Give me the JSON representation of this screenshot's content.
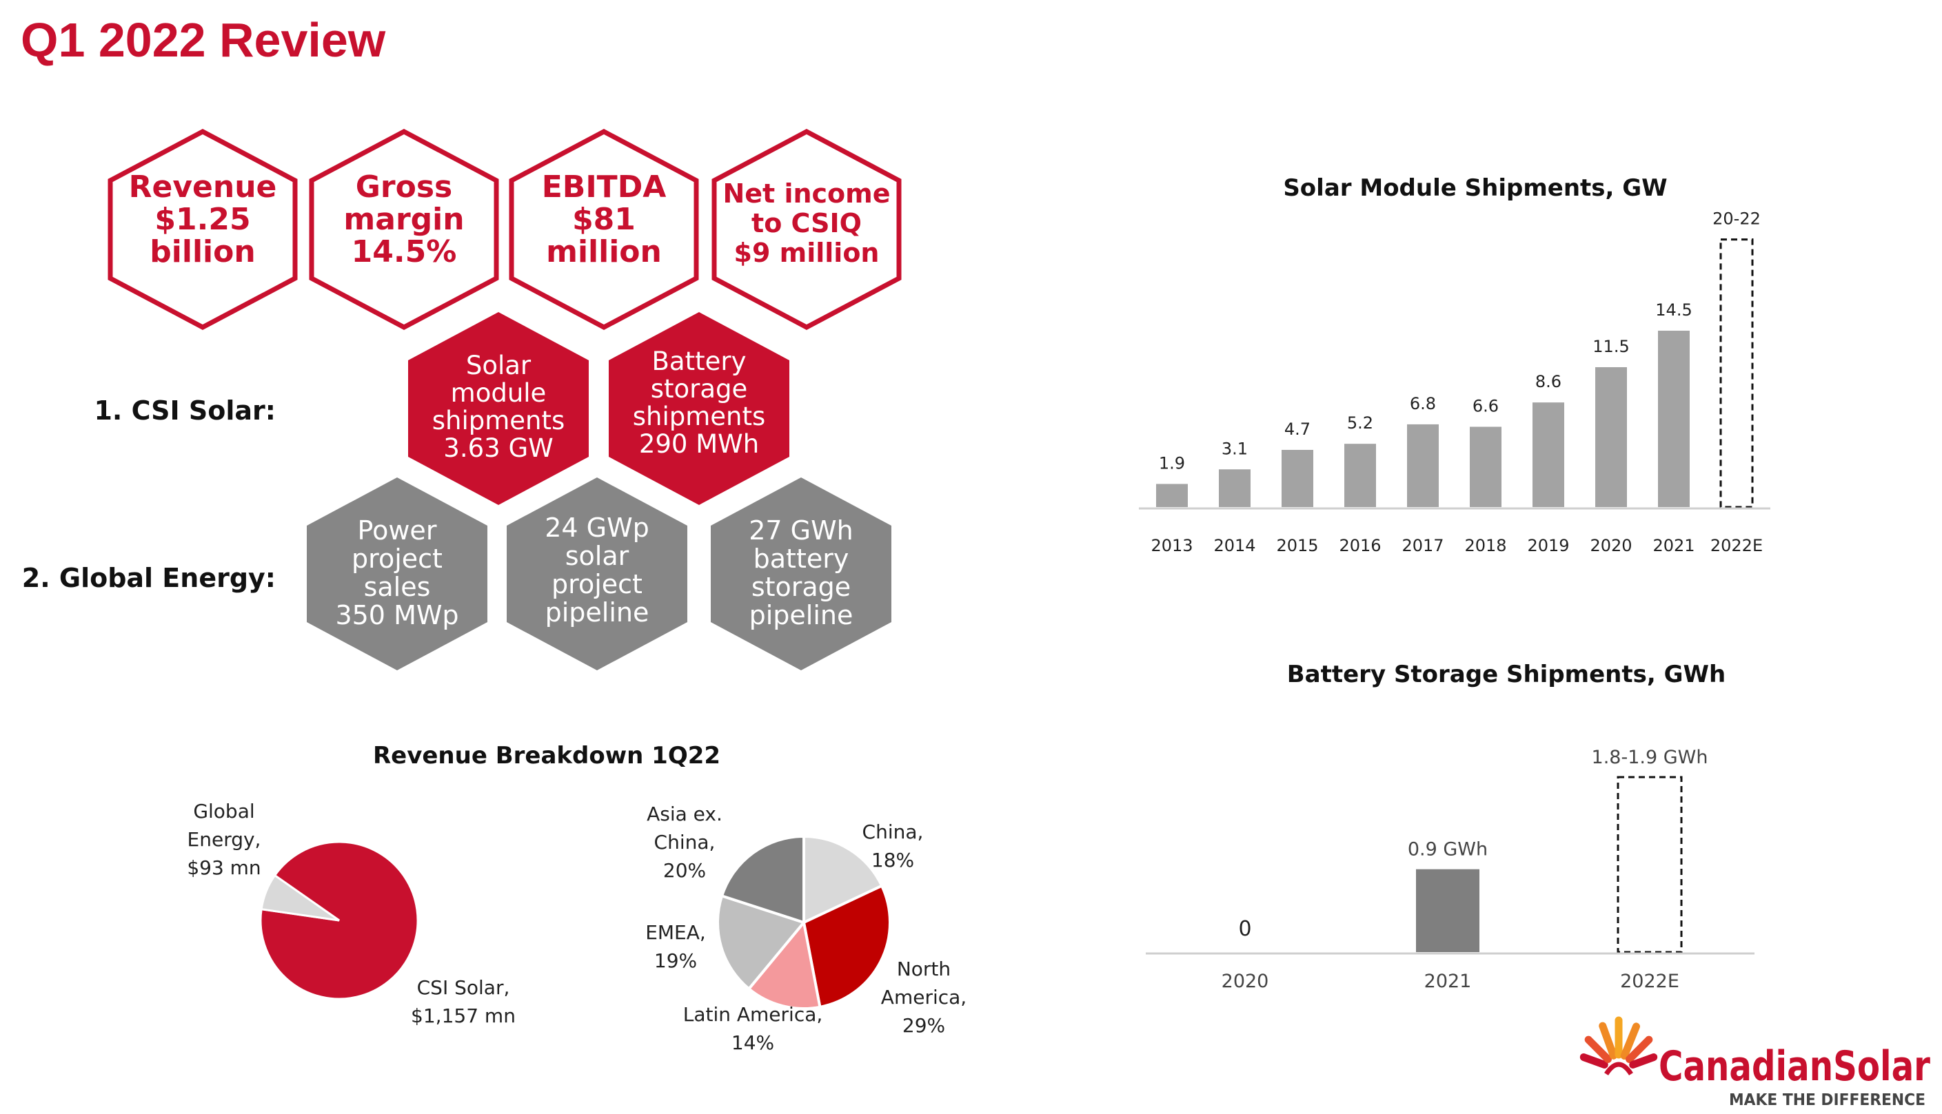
{
  "page": {
    "title": "Q1 2022 Review"
  },
  "kpis": [
    {
      "lines": [
        "Revenue",
        "$1.25",
        "billion"
      ]
    },
    {
      "lines": [
        "Gross",
        "margin",
        "14.5%"
      ]
    },
    {
      "lines": [
        "EBITDA",
        "$81",
        "million"
      ]
    },
    {
      "lines": [
        "Net income",
        "to CSIQ",
        "$9 million"
      ]
    }
  ],
  "segments": {
    "csi_solar": {
      "label": "1. CSI Solar:",
      "items": [
        {
          "lines": [
            "Solar",
            "module",
            "shipments",
            "3.63 GW"
          ]
        },
        {
          "lines": [
            "Battery",
            "storage",
            "shipments",
            "290 MWh"
          ]
        }
      ]
    },
    "global_energy": {
      "label": "2. Global Energy:",
      "items": [
        {
          "lines": [
            "Power",
            "project",
            "sales",
            "350 MWp"
          ]
        },
        {
          "lines": [
            "24 GWp",
            "solar",
            "project",
            "pipeline"
          ]
        },
        {
          "lines": [
            "27 GWh",
            "battery",
            "storage",
            "pipeline"
          ]
        }
      ]
    }
  },
  "colors": {
    "accent_red": "#c8102e",
    "grey_hex": "#868686",
    "bar_grey": "#a3a3a3"
  },
  "logo": {
    "icon": "sun-rays-icon",
    "brand": "CanadianSolar",
    "tagline": "MAKE THE DIFFERENCE"
  },
  "chart_data": [
    {
      "type": "bar",
      "title": "Solar Module Shipments, GW",
      "categories": [
        "2013",
        "2014",
        "2015",
        "2016",
        "2017",
        "2018",
        "2019",
        "2020",
        "2021",
        "2022E"
      ],
      "values": [
        1.9,
        3.1,
        4.7,
        5.2,
        6.8,
        6.6,
        8.6,
        11.5,
        14.5,
        22
      ],
      "value_labels": [
        "1.9",
        "3.1",
        "4.7",
        "5.2",
        "6.8",
        "6.6",
        "8.6",
        "11.5",
        "14.5",
        "20-22"
      ],
      "estimate_range": [
        20,
        22
      ],
      "ylim": [
        0,
        23
      ],
      "grid": false,
      "xlabel": "",
      "ylabel": ""
    },
    {
      "type": "bar",
      "title": "Battery Storage Shipments, GWh",
      "categories": [
        "2020",
        "2021",
        "2022E"
      ],
      "values": [
        0,
        0.9,
        1.9
      ],
      "value_labels": [
        "0",
        "0.9 GWh",
        "1.8-1.9 GWh"
      ],
      "estimate_range": [
        1.8,
        1.9
      ],
      "ylim": [
        0,
        2.0
      ],
      "grid": false,
      "xlabel": "",
      "ylabel": ""
    },
    {
      "type": "pie",
      "title": "Revenue Breakdown 1Q22",
      "slices": [
        {
          "label_lines": [
            "CSI Solar,",
            "$1,157 mn"
          ],
          "value": 1157,
          "color": "#c8102e"
        },
        {
          "label_lines": [
            "Global",
            "Energy,",
            "$93 mn"
          ],
          "value": 93,
          "color": "#d9d9d9"
        }
      ]
    },
    {
      "type": "pie",
      "title": "",
      "slices": [
        {
          "label_lines": [
            "China,",
            "18%"
          ],
          "value": 18,
          "color": "#d9d9d9"
        },
        {
          "label_lines": [
            "North",
            "America,",
            "29%"
          ],
          "value": 29,
          "color": "#c00000"
        },
        {
          "label_lines": [
            "Latin America,",
            "14%"
          ],
          "value": 14,
          "color": "#f4999c"
        },
        {
          "label_lines": [
            "EMEA,",
            "19%"
          ],
          "value": 19,
          "color": "#bfbfbf"
        },
        {
          "label_lines": [
            "Asia ex.",
            "China,",
            "20%"
          ],
          "value": 20,
          "color": "#7f7f7f"
        }
      ]
    }
  ]
}
